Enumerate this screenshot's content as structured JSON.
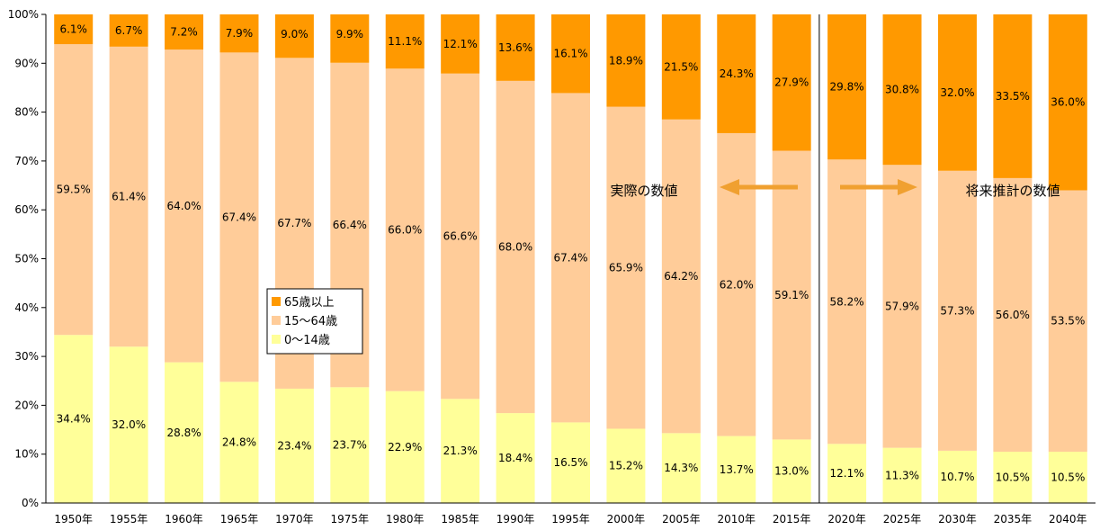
{
  "chart_data": {
    "type": "bar",
    "stacked": true,
    "categories": [
      "1950年",
      "1955年",
      "1960年",
      "1965年",
      "1970年",
      "1975年",
      "1980年",
      "1985年",
      "1990年",
      "1995年",
      "2000年",
      "2005年",
      "2010年",
      "2015年",
      "2020年",
      "2025年",
      "2030年",
      "2035年",
      "2040年"
    ],
    "series": [
      {
        "name": "0～14歳",
        "color": "#ffff99",
        "values": [
          34.4,
          32.0,
          28.8,
          24.8,
          23.4,
          23.7,
          22.9,
          21.3,
          18.4,
          16.5,
          15.2,
          14.3,
          13.7,
          13.0,
          12.1,
          11.3,
          10.7,
          10.5,
          10.5
        ],
        "labels": [
          "34.4%",
          "32.0%",
          "28.8%",
          "24.8%",
          "23.4%",
          "23.7%",
          "22.9%",
          "21.3%",
          "18.4%",
          "16.5%",
          "15.2%",
          "14.3%",
          "13.7%",
          "13.0%",
          "12.1%",
          "11.3%",
          "10.7%",
          "10.5%",
          "10.5%"
        ]
      },
      {
        "name": "15～64歳",
        "color": "#ffcc99",
        "values": [
          59.5,
          61.4,
          64.0,
          67.4,
          67.7,
          66.4,
          66.0,
          66.6,
          68.0,
          67.4,
          65.9,
          64.2,
          62.0,
          59.1,
          58.2,
          57.9,
          57.3,
          56.0,
          53.5
        ],
        "labels": [
          "59.5%",
          "61.4%",
          "64.0%",
          "67.4%",
          "67.7%",
          "66.4%",
          "66.0%",
          "66.6%",
          "68.0%",
          "67.4%",
          "65.9%",
          "64.2%",
          "62.0%",
          "59.1%",
          "58.2%",
          "57.9%",
          "57.3%",
          "56.0%",
          "53.5%"
        ]
      },
      {
        "name": "65歳以上",
        "color": "#ff9900",
        "values": [
          6.1,
          6.7,
          7.2,
          7.9,
          9.0,
          9.9,
          11.1,
          12.1,
          13.6,
          16.1,
          18.9,
          21.5,
          24.3,
          27.9,
          29.8,
          30.8,
          32.0,
          33.5,
          36.0
        ],
        "labels": [
          "6.1%",
          "6.7%",
          "7.2%",
          "7.9%",
          "9.0%",
          "9.9%",
          "11.1%",
          "12.1%",
          "13.6%",
          "16.1%",
          "18.9%",
          "21.5%",
          "24.3%",
          "27.9%",
          "29.8%",
          "30.8%",
          "32.0%",
          "33.5%",
          "36.0%"
        ]
      }
    ],
    "yticks": [
      "0%",
      "10%",
      "20%",
      "30%",
      "40%",
      "50%",
      "60%",
      "70%",
      "80%",
      "90%",
      "100%"
    ],
    "ylim": [
      0,
      100
    ],
    "grid": false,
    "legend_order": [
      "65歳以上",
      "15～64歳",
      "0～14歳"
    ],
    "legend_placement": "center-left",
    "annotations": {
      "actual": "実際の数値",
      "projection": "将来推計の数値",
      "divider_between": [
        "2015年",
        "2020年"
      ]
    },
    "arrow_color": "#f0a030"
  }
}
